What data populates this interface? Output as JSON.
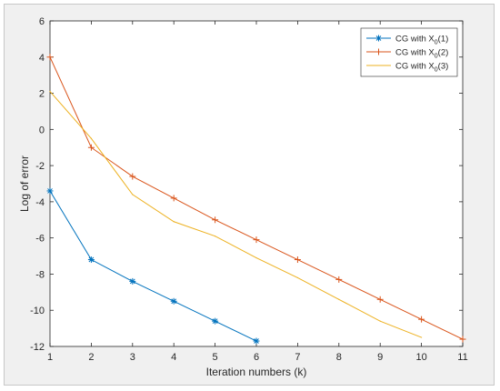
{
  "chart_data": {
    "type": "line",
    "title": "",
    "xlabel": "Iteration numbers (k)",
    "ylabel": "Log of error",
    "xlim": [
      1,
      11
    ],
    "ylim": [
      -12,
      6
    ],
    "xticks": [
      1,
      2,
      3,
      4,
      5,
      6,
      7,
      8,
      9,
      10,
      11
    ],
    "yticks": [
      -12,
      -10,
      -8,
      -6,
      -4,
      -2,
      0,
      2,
      4,
      6
    ],
    "grid": false,
    "legend_position": "top-right",
    "series": [
      {
        "name": "CG with X0(1)",
        "name_prefix": "CG with X",
        "name_sub": "0",
        "name_suffix": "(1)",
        "color": "#0072BD",
        "marker": "asterisk",
        "x": [
          1,
          2,
          3,
          4,
          5,
          6
        ],
        "values": [
          -3.4,
          -7.2,
          -8.4,
          -9.5,
          -10.6,
          -11.7
        ]
      },
      {
        "name": "CG with X0(2)",
        "name_prefix": "CG with X",
        "name_sub": "0",
        "name_suffix": "(2)",
        "color": "#D95319",
        "marker": "plus",
        "x": [
          1,
          2,
          3,
          4,
          5,
          6,
          7,
          8,
          9,
          10,
          11
        ],
        "values": [
          4.0,
          -1.0,
          -2.6,
          -3.8,
          -5.0,
          -6.1,
          -7.2,
          -8.3,
          -9.4,
          -10.5,
          -11.6
        ]
      },
      {
        "name": "CG with X0(3)",
        "name_prefix": "CG with X",
        "name_sub": "0",
        "name_suffix": "(3)",
        "color": "#EDB120",
        "marker": "none",
        "x": [
          1,
          2,
          3,
          4,
          5,
          6,
          7,
          8,
          9,
          10
        ],
        "values": [
          2.1,
          -0.5,
          -3.6,
          -5.1,
          -5.9,
          -7.1,
          -8.2,
          -9.4,
          -10.6,
          -11.5
        ]
      }
    ]
  }
}
